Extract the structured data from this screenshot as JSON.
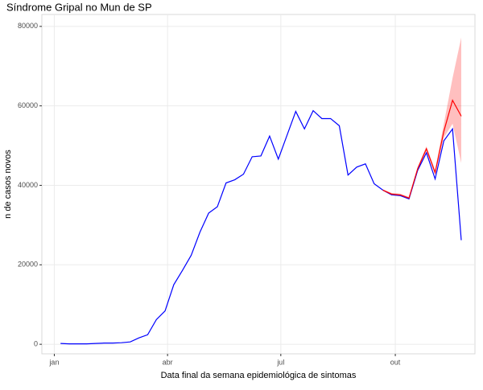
{
  "chart_data": {
    "type": "line",
    "title": "Síndrome Gripal no Mun de SP",
    "xlabel": "Data final da semana epidemiológica de sintomas",
    "ylabel": "n de casos novos",
    "xlim": [
      -10,
      338
    ],
    "xticks": [
      {
        "value": 0,
        "label": "jan"
      },
      {
        "value": 91,
        "label": "abr"
      },
      {
        "value": 182,
        "label": "jul"
      },
      {
        "value": 274,
        "label": "out"
      }
    ],
    "ylim": [
      -2400,
      83000
    ],
    "yticks": [
      0,
      20000,
      40000,
      60000,
      80000
    ],
    "grid": true,
    "series": [
      {
        "color": "#0000ff",
        "x": [
          5,
          12,
          19,
          26,
          33,
          40,
          47,
          54,
          61,
          68,
          75,
          82,
          89,
          96,
          103,
          110,
          117,
          124,
          131,
          138,
          145,
          152,
          159,
          166,
          173,
          180,
          187,
          194,
          201,
          208,
          215,
          222,
          229,
          236,
          243,
          250,
          257,
          264,
          271,
          278,
          285,
          292,
          299,
          306,
          313,
          320,
          327
        ],
        "values": [
          200,
          100,
          100,
          100,
          200,
          300,
          300,
          400,
          600,
          1600,
          2400,
          6200,
          8400,
          15000,
          18600,
          22400,
          28200,
          33000,
          34600,
          40600,
          41400,
          42800,
          47200,
          47400,
          52400,
          46600,
          52600,
          58600,
          54200,
          58800,
          56800,
          56800,
          55000,
          42600,
          44600,
          45400,
          40400,
          38800,
          37600,
          37400,
          36600,
          43800,
          48200,
          41600,
          51200,
          54200,
          26200
        ]
      },
      {
        "color": "#ff0000",
        "x": [
          264,
          271,
          278,
          285,
          292,
          299,
          306,
          313,
          320,
          327
        ],
        "values": [
          38800,
          37800,
          37600,
          36800,
          44200,
          49200,
          43200,
          53600,
          61400,
          57400
        ]
      }
    ],
    "ribbon": {
      "color": "#ff0000",
      "x": [
        264,
        271,
        278,
        285,
        292,
        299,
        306,
        313,
        320,
        327
      ],
      "lower": [
        38600,
        37500,
        37300,
        36500,
        43800,
        48700,
        42600,
        52000,
        55500,
        45600
      ],
      "upper": [
        39000,
        38100,
        37900,
        37100,
        44700,
        49800,
        43900,
        55500,
        67000,
        77200
      ]
    }
  }
}
